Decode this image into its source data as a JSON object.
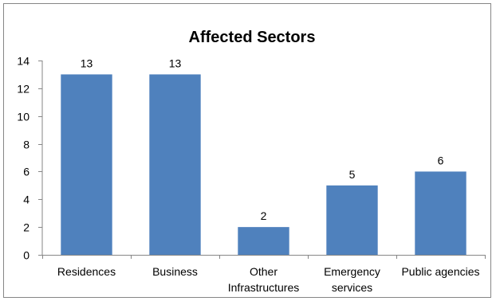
{
  "chart_data": {
    "type": "bar",
    "title": "Affected Sectors",
    "xlabel": "",
    "ylabel": "",
    "categories": [
      [
        "Residences"
      ],
      [
        "Business"
      ],
      [
        "Other",
        "Infrastructures"
      ],
      [
        "Emergency",
        "services"
      ],
      [
        "Public agencies"
      ]
    ],
    "values": [
      13,
      13,
      2,
      5,
      6
    ],
    "ylim": [
      0,
      14
    ],
    "yticks": [
      0,
      2,
      4,
      6,
      8,
      10,
      12,
      14
    ],
    "grid": false,
    "legend": "none",
    "bar_color": "#4F81BD",
    "axis_color": "#868686"
  }
}
